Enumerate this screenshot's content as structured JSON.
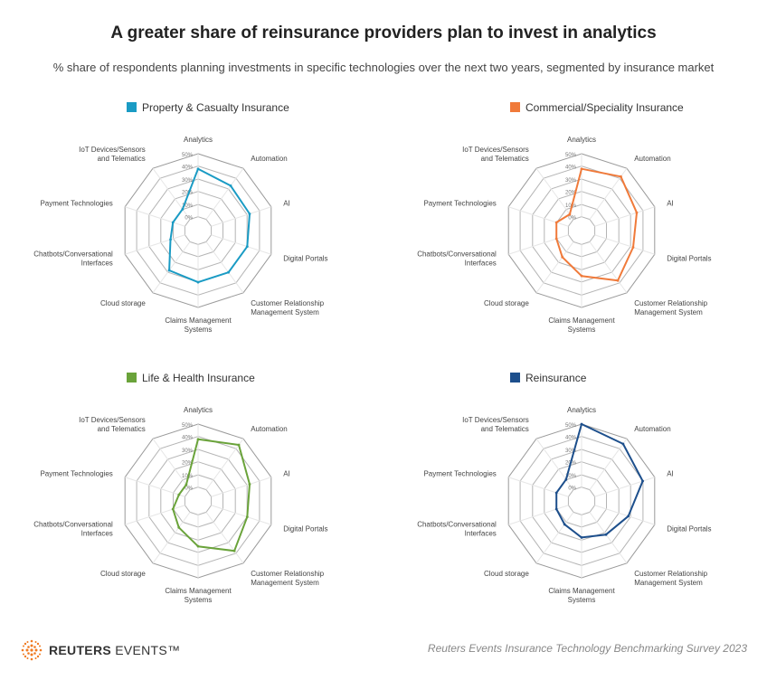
{
  "title": "A greater share of reinsurance providers plan to invest in analytics",
  "subtitle": "% share of respondents planning investments in specific technologies over the next two years, segmented by insurance market",
  "footer": {
    "logo_bold": "REUTERS",
    "logo_rest": " EVENTS™",
    "source": "Reuters Events Insurance Technology Benchmarking Survey 2023"
  },
  "chart_data": [
    {
      "type": "radar",
      "title": "Property & Casualty Insurance",
      "color": "#1a9bc4",
      "axes": [
        "Analytics",
        "Automation",
        "AI",
        "Digital Portals",
        "Customer Relationship Management System",
        "Claims Management Systems",
        "Cloud storage",
        "Chatbots/Conversational Interfaces",
        "Payment Technologies",
        "IoT Devices/Sensors and Telematics"
      ],
      "values": [
        38,
        33,
        32,
        30,
        30,
        30,
        28,
        12,
        10,
        10
      ],
      "rlim": [
        0,
        50
      ],
      "ticks": [
        "0%",
        "10%",
        "20%",
        "30%",
        "40%",
        "50%"
      ]
    },
    {
      "type": "radar",
      "title": "Commercial/Speciality Insurance",
      "color": "#f07a3a",
      "axes": [
        "Analytics",
        "Automation",
        "AI",
        "Digital Portals",
        "Customer Relationship Management System",
        "Claims Management Systems",
        "Cloud storage",
        "Chatbots/Conversational Interfaces",
        "Payment Technologies",
        "IoT Devices/Sensors and Telematics"
      ],
      "values": [
        38,
        42,
        35,
        32,
        38,
        25,
        15,
        10,
        10,
        5
      ],
      "rlim": [
        0,
        50
      ],
      "ticks": [
        "0%",
        "10%",
        "20%",
        "30%",
        "40%",
        "50%"
      ]
    },
    {
      "type": "radar",
      "title": "Life & Health Insurance",
      "color": "#6aa33a",
      "axes": [
        "Analytics",
        "Automation",
        "AI",
        "Digital Portals",
        "Customer Relationship Management System",
        "Claims Management Systems",
        "Cloud storage",
        "Chatbots/Conversational Interfaces",
        "Payment Technologies",
        "IoT Devices/Sensors and Telematics"
      ],
      "values": [
        38,
        44,
        32,
        30,
        38,
        25,
        15,
        10,
        5,
        5
      ],
      "rlim": [
        0,
        50
      ],
      "ticks": [
        "0%",
        "10%",
        "20%",
        "30%",
        "40%",
        "50%"
      ]
    },
    {
      "type": "radar",
      "title": "Reinsurance",
      "color": "#1d4f8c",
      "axes": [
        "Analytics",
        "Automation",
        "AI",
        "Digital Portals",
        "Customer Relationship Management System",
        "Claims Management Systems",
        "Cloud storage",
        "Chatbots/Conversational Interfaces",
        "Payment Technologies",
        "IoT Devices/Sensors and Telematics"
      ],
      "values": [
        50,
        45,
        40,
        28,
        22,
        18,
        12,
        10,
        10,
        10
      ],
      "rlim": [
        0,
        50
      ],
      "ticks": [
        "0%",
        "10%",
        "20%",
        "30%",
        "40%",
        "50%"
      ]
    }
  ]
}
